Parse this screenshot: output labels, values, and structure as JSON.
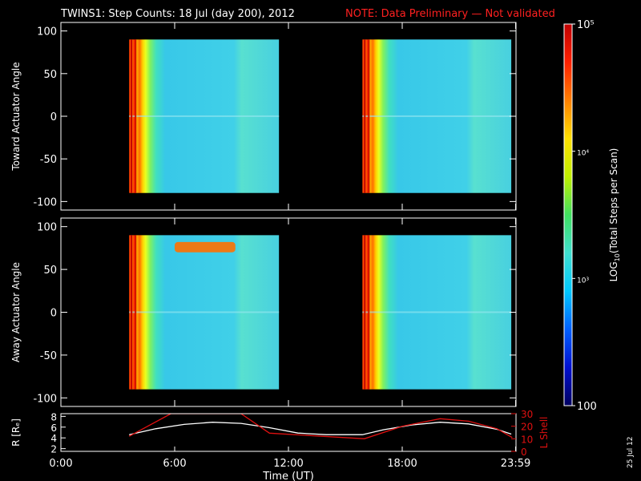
{
  "header": {
    "title": "TWINS1: Step Counts: 18 Jul (day 200), 2012",
    "note": "NOTE: Data Preliminary — Not validated",
    "note_color": "#ff2020"
  },
  "side_date": "25 Jul 12",
  "colors": {
    "background": "#000000",
    "axes": "#ffffff",
    "l_shell": "#e01010",
    "r_line": "#ffffff",
    "field": "#38c8e8"
  },
  "chart_data": [
    {
      "type": "heatmap",
      "panel": "toward",
      "ylabel": "Toward Actuator Angle",
      "ylim": [
        -110,
        110
      ],
      "yticks": [
        100,
        50,
        0,
        -50,
        -100
      ],
      "xlim": [
        0,
        24
      ],
      "data_time_blocks": [
        [
          3.6,
          11.5
        ],
        [
          15.9,
          23.75
        ]
      ],
      "data_angle_range": [
        -90,
        90
      ]
    },
    {
      "type": "heatmap",
      "panel": "away",
      "ylabel": "Away Actuator Angle",
      "ylim": [
        -110,
        110
      ],
      "yticks": [
        100,
        50,
        0,
        -50,
        -100
      ],
      "xlim": [
        0,
        24
      ],
      "data_time_blocks": [
        [
          3.6,
          11.5
        ],
        [
          15.9,
          23.75
        ]
      ],
      "data_angle_range": [
        -90,
        90
      ]
    },
    {
      "type": "line",
      "panel": "orbit",
      "xlabel": "Time (UT)",
      "x_tick_labels": [
        "0:00",
        "6:00",
        "12:00",
        "18:00",
        "23:59"
      ],
      "x_ticks": [
        0,
        6,
        12,
        18,
        23.98
      ],
      "xlim": [
        0,
        24
      ],
      "left_axis": {
        "label": "R [Rₑ]",
        "ylim": [
          1.5,
          8.5
        ],
        "ticks": [
          8,
          6,
          4,
          2
        ]
      },
      "right_axis": {
        "label": "L Shell",
        "ylim": [
          0,
          30
        ],
        "ticks": [
          30,
          20,
          10,
          0
        ]
      },
      "series": [
        {
          "axis": "left",
          "color": "#ffffff",
          "x": [
            3.6,
            5.0,
            6.5,
            8.0,
            9.5,
            11.0,
            12.5,
            14.0,
            15.9,
            17.0,
            18.5,
            20.0,
            21.5,
            23.0,
            23.75
          ],
          "y": [
            4.6,
            5.7,
            6.5,
            6.9,
            6.7,
            5.9,
            4.9,
            4.6,
            4.6,
            5.5,
            6.4,
            6.9,
            6.6,
            5.6,
            4.7
          ]
        },
        {
          "axis": "right",
          "name": "L Shell",
          "color": "#e01010",
          "x": [
            3.6,
            5.8,
            9.5,
            11.0,
            16.0,
            18.0,
            20.0,
            21.5,
            23.0,
            23.8
          ],
          "y": [
            12.0,
            30.0,
            30.0,
            14.5,
            10.0,
            20.0,
            26.0,
            24.0,
            18.0,
            11.0
          ]
        }
      ]
    }
  ],
  "colorbar": {
    "label_prefix": "LOG",
    "label_sub": "10",
    "label_suffix": "(Total Steps per Scan)",
    "range": [
      100,
      100000
    ],
    "scale": "log",
    "tick_labels": [
      "10⁵",
      "10⁴",
      "10³",
      "100"
    ],
    "tick_values": [
      100000,
      10000,
      1000,
      100
    ],
    "stops": [
      "#000060",
      "#0010d0",
      "#0060ff",
      "#00c8ff",
      "#40e0d0",
      "#40e060",
      "#c0f000",
      "#ffe000",
      "#ff8000",
      "#ff2000",
      "#c00000"
    ]
  }
}
